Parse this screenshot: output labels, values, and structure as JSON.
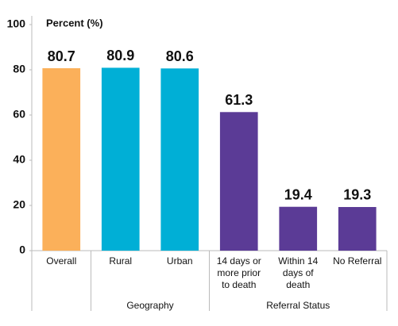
{
  "chart_data": {
    "type": "bar",
    "y_axis_title": "Percent (%)",
    "categories": [
      "Overall",
      "Rural",
      "Urban",
      "14 days or more prior to death",
      "Within 14 days of death",
      "No Referral"
    ],
    "values": [
      80.7,
      80.9,
      80.6,
      61.3,
      19.4,
      19.3
    ],
    "colors": [
      "#fbb05a",
      "#00afd6",
      "#00afd6",
      "#5b3b96",
      "#5b3b96",
      "#5b3b96"
    ],
    "groups": [
      {
        "name": "Geography",
        "categories": [
          1,
          2
        ]
      },
      {
        "name": "Referral Status",
        "categories": [
          3,
          5
        ]
      }
    ],
    "ylim": [
      0,
      100
    ],
    "yticks": [
      0,
      20,
      40,
      60,
      80,
      100
    ],
    "grid": false
  }
}
